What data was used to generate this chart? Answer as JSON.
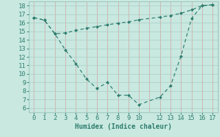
{
  "x": [
    0,
    1,
    2,
    3,
    4,
    5,
    6,
    7,
    8,
    9,
    10,
    12,
    13,
    14,
    15,
    16,
    17
  ],
  "line1": [
    16.6,
    16.3,
    14.7,
    14.8,
    15.1,
    15.35,
    15.55,
    15.75,
    15.95,
    16.1,
    16.35,
    16.65,
    16.85,
    17.1,
    17.5,
    18.0,
    18.1
  ],
  "line2": [
    16.6,
    16.3,
    14.7,
    12.8,
    11.2,
    9.4,
    8.3,
    9.0,
    7.5,
    7.5,
    6.4,
    7.3,
    8.6,
    12.1,
    16.5,
    18.0,
    18.1
  ],
  "line_color": "#2e7d6e",
  "bg_color": "#c8e8e0",
  "grid_color_major": "#b8d8d0",
  "grid_color_minor": "#e8b8b8",
  "xlabel": "Humidex (Indice chaleur)",
  "ylim": [
    5.5,
    18.5
  ],
  "xlim": [
    -0.5,
    17.5
  ],
  "yticks": [
    6,
    7,
    8,
    9,
    10,
    11,
    12,
    13,
    14,
    15,
    16,
    17,
    18
  ],
  "xticks": [
    0,
    1,
    2,
    3,
    4,
    5,
    6,
    7,
    8,
    9,
    10,
    12,
    13,
    14,
    15,
    16,
    17
  ],
  "label_fontsize": 7,
  "tick_fontsize": 6.5
}
